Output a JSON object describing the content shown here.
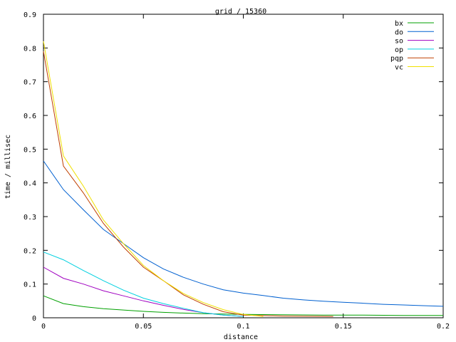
{
  "chart_data": {
    "type": "line",
    "title": "grid / 15360",
    "xlabel": "distance",
    "ylabel": "time / millisec",
    "xlim": [
      0,
      0.2
    ],
    "ylim": [
      0,
      0.9
    ],
    "xticks": [
      "0",
      "0.05",
      "0.1",
      "0.15",
      "0.2"
    ],
    "yticks": [
      "0",
      "0.1",
      "0.2",
      "0.3",
      "0.4",
      "0.5",
      "0.6",
      "0.7",
      "0.8",
      "0.9"
    ],
    "grid": false,
    "legend_position": "top-right",
    "series": [
      {
        "name": "bx",
        "color": "#00a000",
        "x": [
          0,
          0.01,
          0.02,
          0.03,
          0.04,
          0.05,
          0.06,
          0.07,
          0.08,
          0.09,
          0.1,
          0.12,
          0.14,
          0.16,
          0.18,
          0.2
        ],
        "y": [
          0.065,
          0.042,
          0.033,
          0.027,
          0.023,
          0.019,
          0.016,
          0.014,
          0.012,
          0.011,
          0.01,
          0.009,
          0.008,
          0.008,
          0.007,
          0.007
        ]
      },
      {
        "name": "do",
        "color": "#0060d0",
        "x": [
          0,
          0.01,
          0.02,
          0.03,
          0.04,
          0.05,
          0.06,
          0.07,
          0.08,
          0.09,
          0.1,
          0.11,
          0.12,
          0.13,
          0.14,
          0.15,
          0.16,
          0.17,
          0.18,
          0.19,
          0.2
        ],
        "y": [
          0.465,
          0.38,
          0.32,
          0.262,
          0.22,
          0.178,
          0.145,
          0.12,
          0.1,
          0.083,
          0.073,
          0.066,
          0.058,
          0.053,
          0.049,
          0.046,
          0.043,
          0.04,
          0.038,
          0.036,
          0.034
        ]
      },
      {
        "name": "so",
        "color": "#a000c0",
        "x": [
          0,
          0.01,
          0.02,
          0.03,
          0.04,
          0.05,
          0.06,
          0.07,
          0.08,
          0.09,
          0.1
        ],
        "y": [
          0.15,
          0.117,
          0.1,
          0.08,
          0.065,
          0.05,
          0.037,
          0.025,
          0.015,
          0.008,
          0.004
        ]
      },
      {
        "name": "op",
        "color": "#00d0e0",
        "x": [
          0,
          0.01,
          0.02,
          0.03,
          0.04,
          0.05,
          0.06,
          0.07,
          0.08,
          0.09,
          0.1
        ],
        "y": [
          0.195,
          0.172,
          0.14,
          0.11,
          0.082,
          0.058,
          0.042,
          0.028,
          0.015,
          0.008,
          0.004
        ]
      },
      {
        "name": "pqp",
        "color": "#c04000",
        "x": [
          0,
          0.01,
          0.02,
          0.03,
          0.04,
          0.05,
          0.06,
          0.07,
          0.08,
          0.09,
          0.1,
          0.12,
          0.145
        ],
        "y": [
          0.79,
          0.45,
          0.37,
          0.28,
          0.21,
          0.15,
          0.11,
          0.068,
          0.04,
          0.018,
          0.008,
          0.005,
          0.004
        ]
      },
      {
        "name": "vc",
        "color": "#f0e000",
        "x": [
          0,
          0.01,
          0.02,
          0.03,
          0.04,
          0.05,
          0.06,
          0.07,
          0.08,
          0.09,
          0.1,
          0.11
        ],
        "y": [
          0.82,
          0.48,
          0.39,
          0.29,
          0.22,
          0.155,
          0.11,
          0.072,
          0.045,
          0.024,
          0.01,
          0.004
        ]
      }
    ]
  }
}
